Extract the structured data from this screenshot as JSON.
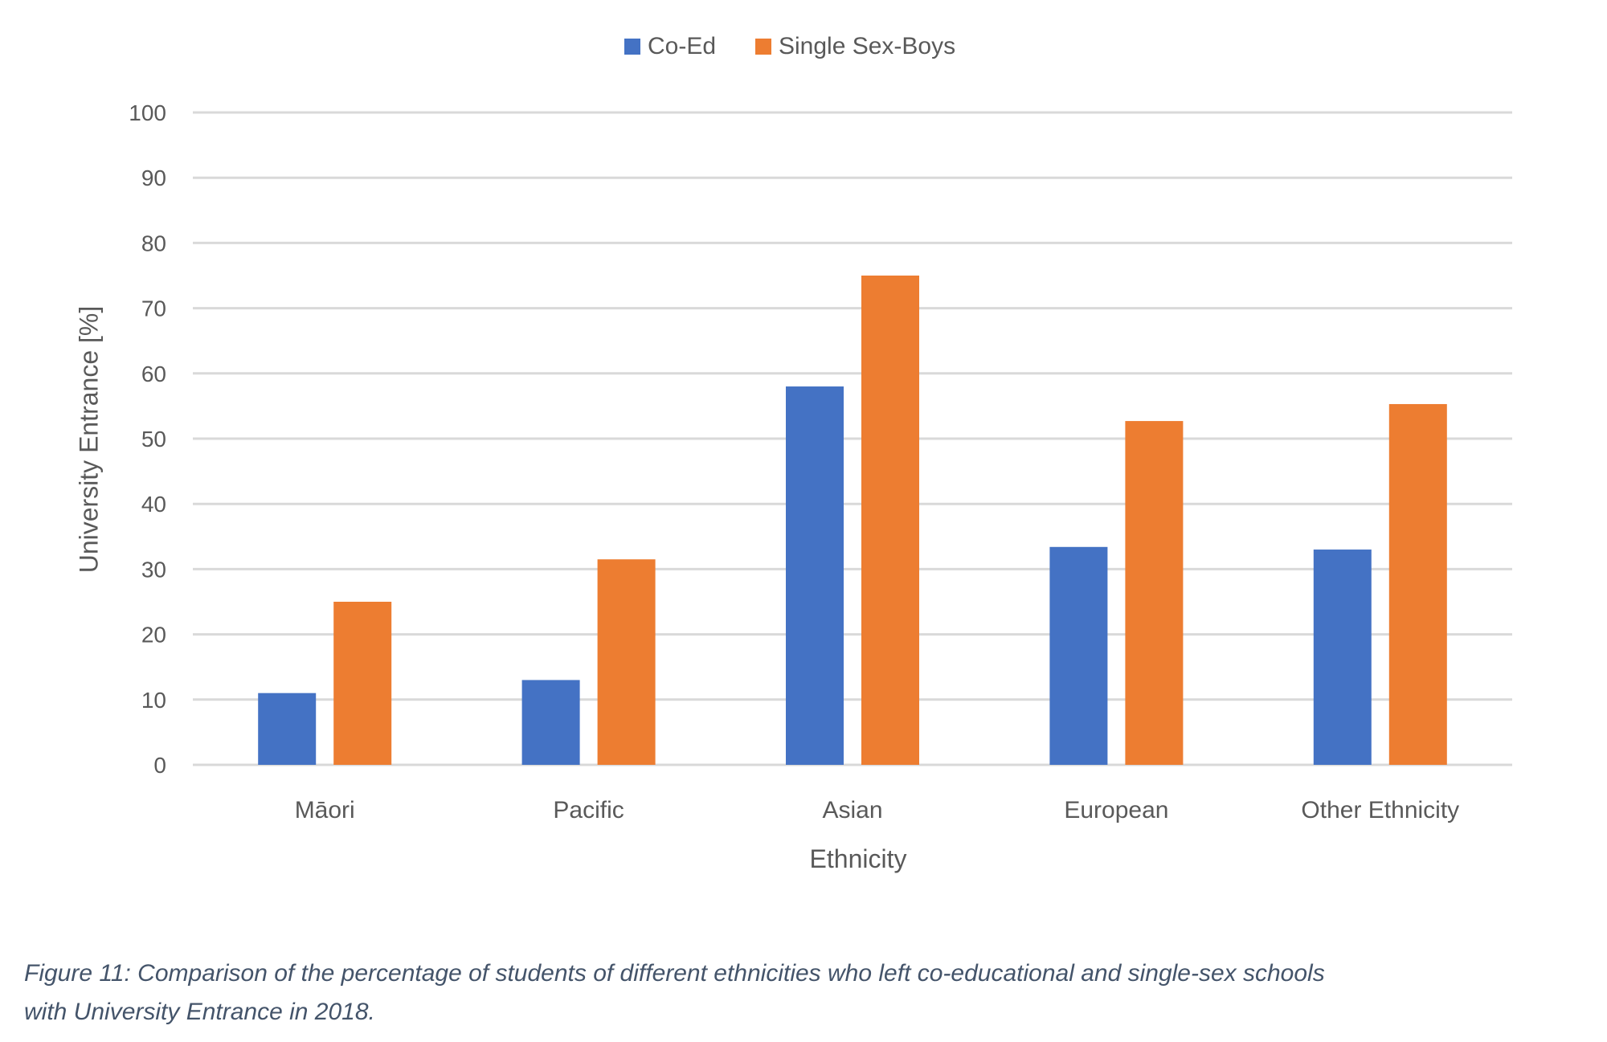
{
  "chart_data": {
    "type": "bar",
    "title": "",
    "categories": [
      "Māori",
      "Pacific",
      "Asian",
      "European",
      "Other Ethnicity"
    ],
    "series": [
      {
        "name": "Co-Ed",
        "color": "#4472c4",
        "values": [
          11,
          13,
          58,
          33.4,
          33
        ]
      },
      {
        "name": "Single Sex-Boys",
        "color": "#ed7d31",
        "values": [
          25,
          31.5,
          75,
          52.7,
          55.3
        ]
      }
    ],
    "xlabel": "Ethnicity",
    "ylabel": "University Entrance [%]",
    "ylim": [
      0,
      100
    ],
    "yticks": [
      0,
      10,
      20,
      30,
      40,
      50,
      60,
      70,
      80,
      90,
      100
    ],
    "grid": true,
    "legend_position": "top-center"
  },
  "caption": {
    "line1": "Figure 11: Comparison of the percentage of students of different ethnicities who left co-educational and single-sex schools",
    "line2": "with University Entrance in 2018."
  },
  "colors": {
    "gridline": "#d9d9d9",
    "text": "#595959",
    "caption": "#44546a"
  }
}
